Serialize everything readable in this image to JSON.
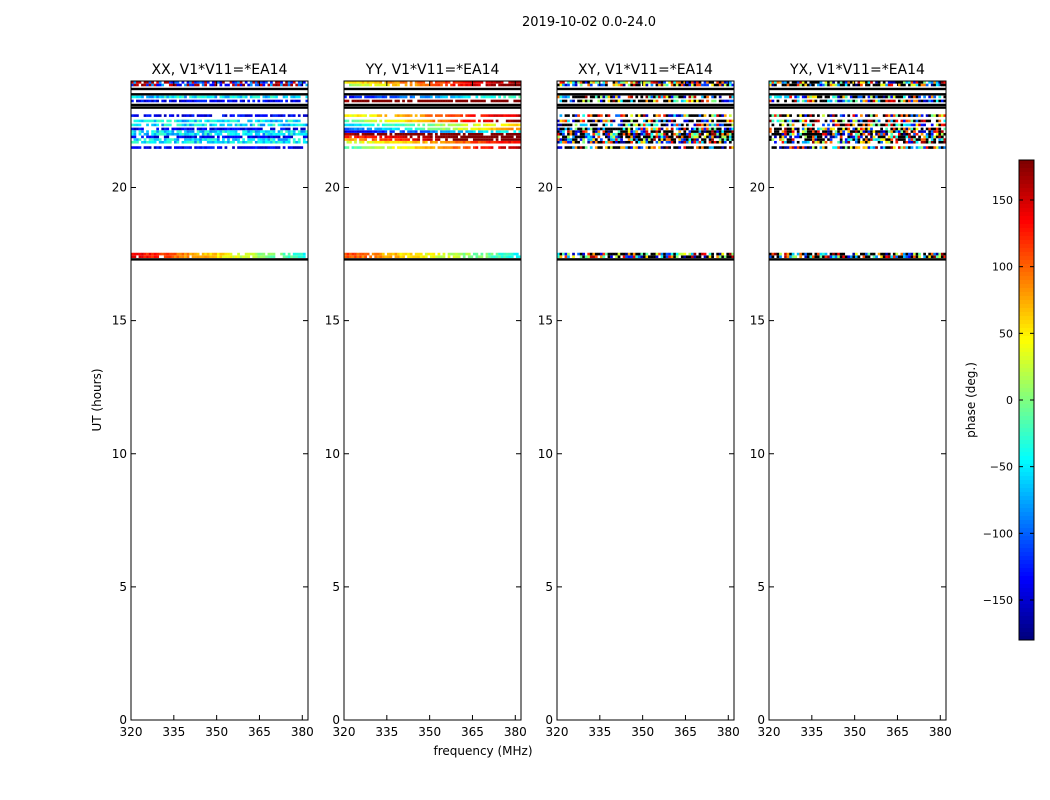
{
  "figure": {
    "title": "2019-10-02 0.0-24.0",
    "xlabel": "frequency (MHz)",
    "ylabel": "UT (hours)"
  },
  "chart_data": {
    "type": "heatmap",
    "xlim": [
      320,
      382
    ],
    "ylim": [
      0,
      24
    ],
    "xticks": [
      320,
      335,
      350,
      365,
      380
    ],
    "yticks": [
      0,
      5,
      10,
      15,
      20
    ],
    "panels": [
      {
        "title": "XX, V1*V11=*EA14",
        "style": "smooth"
      },
      {
        "title": "YY, V1*V11=*EA14",
        "style": "gradient"
      },
      {
        "title": "XY, V1*V11=*EA14",
        "style": "noise"
      },
      {
        "title": "YX, V1*V11=*EA14",
        "style": "noise"
      }
    ],
    "rows": [
      {
        "ut": 17.3,
        "kind": "solid"
      },
      {
        "ut": 17.4,
        "kind": "data"
      },
      {
        "ut": 17.5,
        "kind": "data"
      },
      {
        "ut": 21.5,
        "kind": "data"
      },
      {
        "ut": 21.7,
        "kind": "data"
      },
      {
        "ut": 21.8,
        "kind": "data"
      },
      {
        "ut": 21.9,
        "kind": "data"
      },
      {
        "ut": 22.0,
        "kind": "data"
      },
      {
        "ut": 22.1,
        "kind": "data"
      },
      {
        "ut": 22.2,
        "kind": "data"
      },
      {
        "ut": 22.35,
        "kind": "data"
      },
      {
        "ut": 22.5,
        "kind": "data"
      },
      {
        "ut": 22.7,
        "kind": "data"
      },
      {
        "ut": 23.0,
        "kind": "solid"
      },
      {
        "ut": 23.1,
        "kind": "solid"
      },
      {
        "ut": 23.25,
        "kind": "data"
      },
      {
        "ut": 23.4,
        "kind": "data"
      },
      {
        "ut": 23.5,
        "kind": "solid"
      },
      {
        "ut": 23.7,
        "kind": "solid"
      },
      {
        "ut": 23.85,
        "kind": "data"
      },
      {
        "ut": 23.95,
        "kind": "data"
      }
    ],
    "colorbar": {
      "label": "phase (deg.)",
      "range": [
        -180,
        180
      ],
      "ticks": [
        150,
        100,
        50,
        0,
        -50,
        -100,
        -150
      ],
      "tick_labels": [
        "150",
        "100",
        "50",
        "0",
        "−50",
        "−100",
        "−150"
      ],
      "colormap": "jet"
    }
  }
}
